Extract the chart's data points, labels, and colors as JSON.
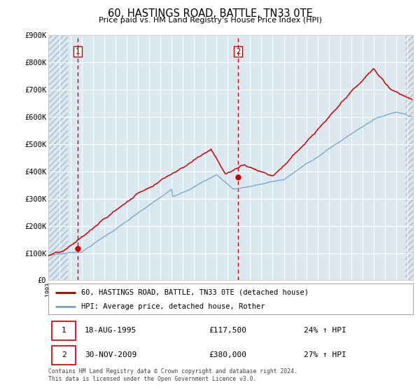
{
  "title": "60, HASTINGS ROAD, BATTLE, TN33 0TE",
  "subtitle": "Price paid vs. HM Land Registry's House Price Index (HPI)",
  "line1_label": "60, HASTINGS ROAD, BATTLE, TN33 0TE (detached house)",
  "line2_label": "HPI: Average price, detached house, Rother",
  "transaction1_date": "18-AUG-1995",
  "transaction1_price": 117500,
  "transaction1_info": "24% ↑ HPI",
  "transaction2_date": "30-NOV-2009",
  "transaction2_price": 380000,
  "transaction2_info": "27% ↑ HPI",
  "footer": "Contains HM Land Registry data © Crown copyright and database right 2024.\nThis data is licensed under the Open Government Licence v3.0.",
  "ylim": [
    0,
    900000
  ],
  "yticks": [
    0,
    100000,
    200000,
    300000,
    400000,
    500000,
    600000,
    700000,
    800000,
    900000
  ],
  "ytick_labels": [
    "£0",
    "£100K",
    "£200K",
    "£300K",
    "£400K",
    "£500K",
    "£600K",
    "£700K",
    "£800K",
    "£900K"
  ],
  "hpi_color": "#7aaad0",
  "price_color": "#cc0000",
  "marker_color": "#cc0000",
  "vline_color": "#cc0000",
  "bg_color": "#dce8f0",
  "hatch_color": "#aabbcc",
  "grid_color": "#ffffff",
  "transaction1_x": 1995.625,
  "transaction2_x": 2009.915,
  "xmin": 1993.0,
  "xmax": 2025.5,
  "left_hatch_end": 1994.75,
  "right_hatch_start": 2024.83
}
